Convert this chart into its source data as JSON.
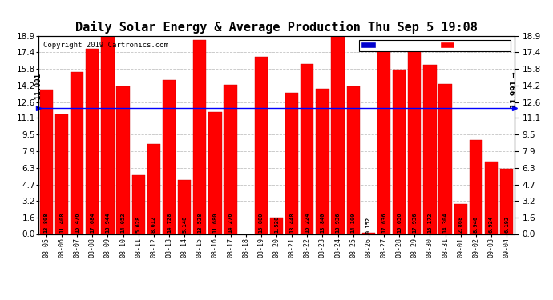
{
  "title": "Daily Solar Energy & Average Production Thu Sep 5 19:08",
  "copyright": "Copyright 2019 Cartronics.com",
  "average_value": 11.991,
  "average_label": "11.991",
  "categories": [
    "08-05",
    "08-06",
    "08-07",
    "08-08",
    "08-09",
    "08-10",
    "08-11",
    "08-12",
    "08-13",
    "08-14",
    "08-15",
    "08-16",
    "08-17",
    "08-18",
    "08-19",
    "08-20",
    "08-21",
    "08-22",
    "08-23",
    "08-24",
    "08-25",
    "08-26",
    "08-27",
    "08-28",
    "08-29",
    "08-30",
    "08-31",
    "09-01",
    "09-02",
    "09-03",
    "09-04"
  ],
  "values": [
    13.808,
    11.408,
    15.476,
    17.684,
    18.944,
    14.052,
    5.628,
    8.612,
    14.728,
    5.148,
    18.528,
    11.68,
    14.276,
    0.0,
    16.88,
    1.528,
    13.448,
    16.224,
    13.84,
    18.936,
    14.1,
    0.152,
    17.636,
    15.656,
    17.936,
    16.172,
    14.304,
    2.868,
    8.94,
    6.924,
    6.192
  ],
  "bar_color": "#FF0000",
  "avg_line_color": "#0000FF",
  "background_color": "#FFFFFF",
  "plot_bg_color": "#FFFFFF",
  "grid_color": "#AAAAAA",
  "ylim": [
    0.0,
    18.9
  ],
  "yticks": [
    0.0,
    1.6,
    3.2,
    4.7,
    6.3,
    7.9,
    9.5,
    11.1,
    12.6,
    14.2,
    15.8,
    17.4,
    18.9
  ],
  "legend_avg_color": "#0000CC",
  "legend_daily_color": "#FF0000",
  "title_fontsize": 11,
  "tick_fontsize": 7.5,
  "bar_label_fontsize": 5.0,
  "copyright_fontsize": 6.5
}
